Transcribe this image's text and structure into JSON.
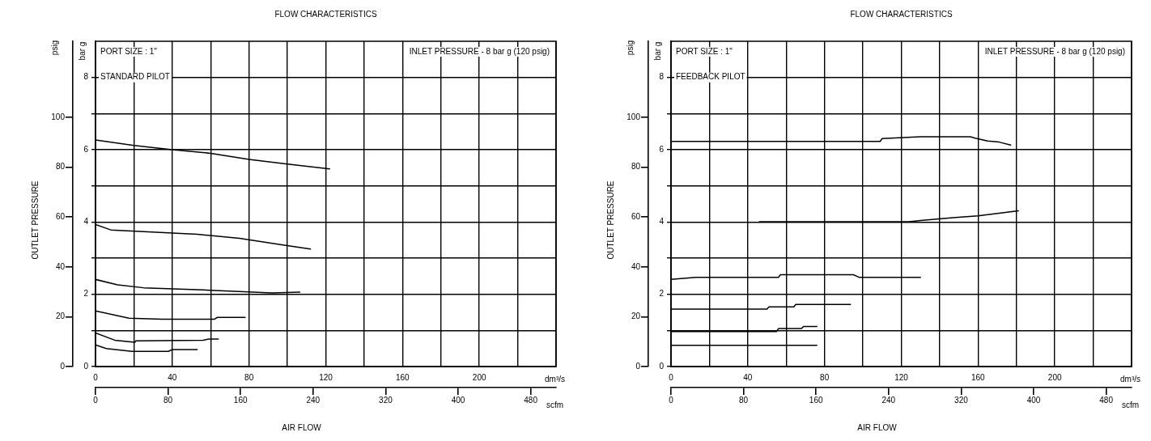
{
  "chart_data": [
    {
      "type": "line",
      "title": "FLOW CHARACTERISTICS",
      "xlabel": "AIR FLOW",
      "ylabel": "OUTLET PRESSURE",
      "x2label": "scfm",
      "y2label": "bar g",
      "annotations": [
        "PORT SIZE : 1\"",
        "STANDARD PILOT",
        "INLET PRESSURE - 8 bar g (120 psig)",
        "dm³/s",
        "psig"
      ],
      "xlim": [
        0,
        240
      ],
      "xticks": [
        0,
        {
          "value": 20,
          "label": null
        },
        40,
        {
          "value": 60,
          "label": null
        },
        80,
        {
          "value": 100,
          "label": null
        },
        120,
        {
          "value": 140,
          "label": null
        },
        160,
        {
          "value": 180,
          "label": null
        },
        200,
        {
          "value": 220,
          "label": null
        },
        {
          "value": 240,
          "label": null
        }
      ],
      "x2lim": [
        0,
        508
      ],
      "x2ticks": [
        0,
        80,
        160,
        240,
        320,
        400,
        480
      ],
      "ylim": [
        0,
        130.5
      ],
      "yticks": [
        0,
        20,
        40,
        60,
        80,
        100
      ],
      "y2lim": [
        0,
        9
      ],
      "y2ticks": [
        0,
        {
          "value": 1,
          "label": null
        },
        2,
        {
          "value": 3,
          "label": null
        },
        4,
        {
          "value": 5,
          "label": null
        },
        6,
        {
          "value": 7,
          "label": null
        },
        8
      ],
      "grid": true,
      "marker": "none",
      "line_style": "solid",
      "series": [
        {
          "color": "#000000",
          "axis": "y2",
          "x": [
            0,
            20,
            40,
            60,
            80,
            100,
            122
          ],
          "values": [
            6.27,
            6.12,
            6.0,
            5.9,
            5.73,
            5.6,
            5.47
          ]
        },
        {
          "color": "#000000",
          "axis": "y2",
          "x": [
            0,
            8,
            23,
            53,
            75,
            97,
            112
          ],
          "values": [
            3.93,
            3.78,
            3.74,
            3.66,
            3.55,
            3.37,
            3.25
          ]
        },
        {
          "color": "#000000",
          "axis": "y2",
          "x": [
            0,
            11.5,
            25,
            56,
            92,
            106.5
          ],
          "values": [
            2.41,
            2.26,
            2.18,
            2.12,
            2.04,
            2.06
          ]
        },
        {
          "color": "#000000",
          "axis": "y2",
          "x": [
            0,
            17.5,
            35,
            62,
            63.5,
            78
          ],
          "values": [
            1.54,
            1.34,
            1.31,
            1.31,
            1.36,
            1.36
          ]
        },
        {
          "color": "#000000",
          "axis": "y2",
          "x": [
            0,
            10,
            20.5,
            21,
            56,
            59,
            64
          ],
          "values": [
            0.93,
            0.73,
            0.67,
            0.71,
            0.73,
            0.76,
            0.76
          ]
        },
        {
          "color": "#000000",
          "axis": "y2",
          "x": [
            0,
            5.6,
            19,
            38,
            40,
            53
          ],
          "values": [
            0.6,
            0.5,
            0.42,
            0.42,
            0.47,
            0.47
          ]
        }
      ]
    },
    {
      "type": "line",
      "title": "FLOW CHARACTERISTICS",
      "xlabel": "AIR FLOW",
      "ylabel": "OUTLET PRESSURE",
      "x2label": "scfm",
      "y2label": "bar g",
      "annotations": [
        "PORT SIZE : 1\"",
        "FEEDBACK PILOT",
        "INLET PRESSURE - 8 bar g (120 psig)",
        "dm³/s",
        "psig"
      ],
      "xlim": [
        0,
        240
      ],
      "xticks": [
        0,
        {
          "value": 20,
          "label": null
        },
        40,
        {
          "value": 60,
          "label": null
        },
        80,
        {
          "value": 100,
          "label": null
        },
        120,
        {
          "value": 140,
          "label": null
        },
        160,
        {
          "value": 180,
          "label": null
        },
        200,
        {
          "value": 220,
          "label": null
        },
        {
          "value": 240,
          "label": null
        }
      ],
      "x2lim": [
        0,
        508
      ],
      "x2ticks": [
        0,
        80,
        160,
        240,
        320,
        400,
        480
      ],
      "ylim": [
        0,
        130.5
      ],
      "yticks": [
        0,
        20,
        40,
        60,
        80,
        100
      ],
      "y2lim": [
        0,
        9
      ],
      "y2ticks": [
        0,
        {
          "value": 1,
          "label": null
        },
        2,
        {
          "value": 3,
          "label": null
        },
        4,
        {
          "value": 5,
          "label": null
        },
        6,
        {
          "value": 7,
          "label": null
        },
        8
      ],
      "grid": true,
      "marker": "none",
      "line_style": "solid",
      "series": [
        {
          "color": "#000000",
          "axis": "y2",
          "x": [
            0,
            109,
            110,
            130,
            156,
            158.5,
            165,
            171,
            177
          ],
          "values": [
            6.23,
            6.23,
            6.31,
            6.36,
            6.36,
            6.32,
            6.24,
            6.21,
            6.13
          ]
        },
        {
          "color": "#000000",
          "axis": "y2",
          "x": [
            46,
            124,
            130,
            147,
            160,
            171,
            181
          ],
          "values": [
            4.01,
            4.01,
            4.04,
            4.12,
            4.17,
            4.24,
            4.31
          ]
        },
        {
          "color": "#000000",
          "axis": "y2",
          "x": [
            0,
            13,
            56,
            57,
            95,
            98,
            130
          ],
          "values": [
            2.41,
            2.47,
            2.47,
            2.54,
            2.54,
            2.47,
            2.47
          ]
        },
        {
          "color": "#000000",
          "axis": "y2",
          "x": [
            0,
            50,
            51,
            64,
            65,
            93.5
          ],
          "values": [
            1.59,
            1.59,
            1.65,
            1.65,
            1.72,
            1.72
          ]
        },
        {
          "color": "#000000",
          "axis": "y2",
          "x": [
            0,
            55,
            56,
            68,
            69,
            76
          ],
          "values": [
            0.97,
            0.97,
            1.05,
            1.05,
            1.11,
            1.11
          ]
        },
        {
          "color": "#000000",
          "axis": "y2",
          "x": [
            0,
            76
          ],
          "values": [
            0.59,
            0.59
          ]
        }
      ]
    }
  ]
}
